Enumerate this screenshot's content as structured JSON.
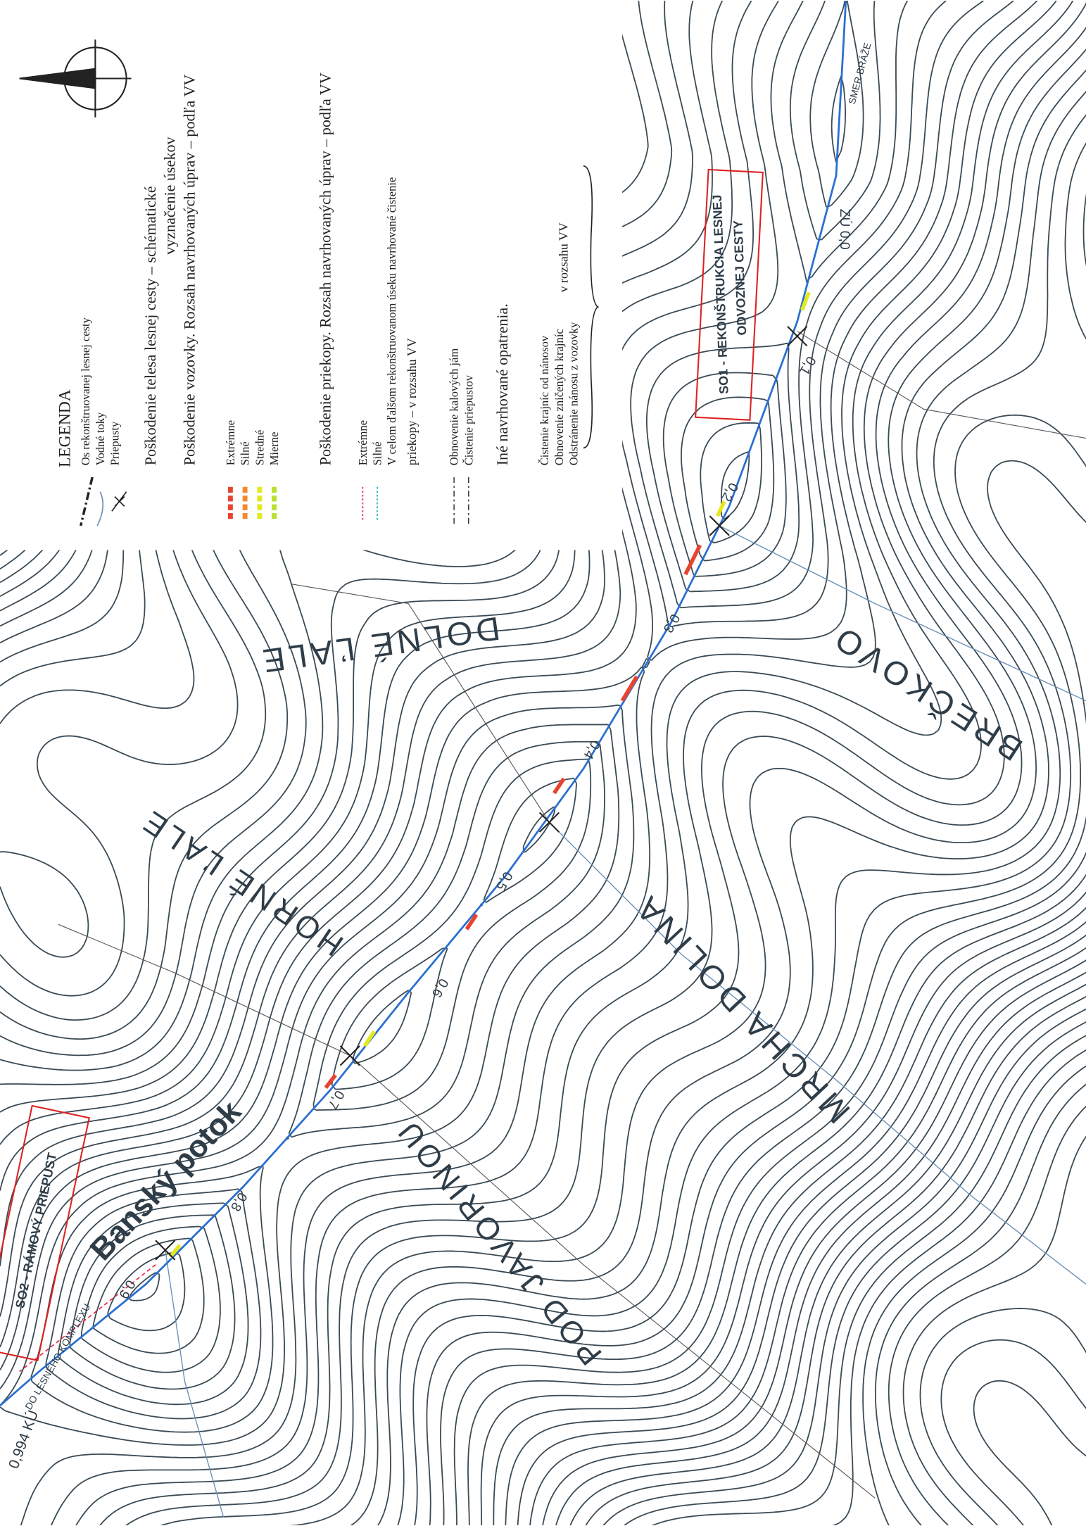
{
  "legend": {
    "title": "LEGENDA",
    "axis": "Os rekonštruovanej lesnej cesty",
    "streams": "Vodné toky",
    "culverts": "Priepusty",
    "body_damage": [
      "Poškodenie telesa lesnej cesty – schématické",
      "vyznačenie úsekov"
    ],
    "road_damage": "Poškodenie vozovky. Rozsah navrhovaných úprav – podľa VV",
    "road_levels": [
      "Extrémne",
      "Silné",
      "Stredné",
      "Mierne"
    ],
    "ditch_damage": "Poškodenie priekopy. Rozsah navrhovaných úprav – podľa VV",
    "ditch_levels": [
      "Extrémne",
      "Silné",
      "V celom ďalšom rekonštruovanom úseku navrhované čistenie",
      "priekopy – v rozsahu VV"
    ],
    "sediment": [
      "Obnovenie kalových jám",
      "Čistenie priepustov"
    ],
    "other": "Iné navrhované opatrenia.",
    "measures": [
      "Čistenie krajníc od nánosov",
      "Obnovenie zničených krajníc",
      "Odstránenie nánosu z vozovky"
    ],
    "measures_scope": "v rozsahu VV"
  },
  "map": {
    "places": [
      "DOLNÉ ĽALE",
      "HORNÉ ĽALE",
      "BREČKOVO",
      "MRCHA DOLINA",
      "POD JAVORINOU"
    ],
    "stream": "Banský potok",
    "objects": [
      "SO1 - REKONŠTRUKCIA LESNEJ",
      "ODVOZNEJ CESTY",
      "SO2 - RÁMOVÝ PRIEPUST"
    ],
    "stations": [
      "0,1",
      "0,2",
      "0,3",
      "0,4",
      "0,5",
      "0,6",
      "0,7",
      "0,8",
      "0,9"
    ],
    "start": "ZÚ 0,0",
    "end": "0,994 KÚ",
    "direction": "SMER BRÁŽE",
    "continuation": "DO LESNÉHO KOMPLEXU"
  }
}
